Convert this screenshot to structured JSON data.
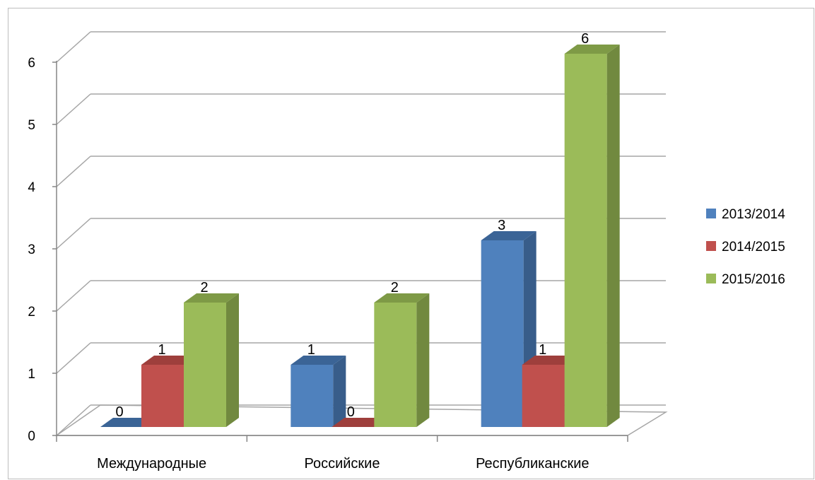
{
  "chart_data": {
    "type": "bar",
    "categories": [
      "Международные",
      "Российские",
      "Республиканские"
    ],
    "series": [
      {
        "name": "2013/2014",
        "values": [
          0,
          1,
          3
        ],
        "color": "#4F81BD",
        "side_color": "#385D8A",
        "top_color": "#3B6496"
      },
      {
        "name": "2014/2015",
        "values": [
          1,
          0,
          1
        ],
        "color": "#C0504D",
        "side_color": "#8C3836",
        "top_color": "#9E3F3C"
      },
      {
        "name": "2015/2016",
        "values": [
          2,
          2,
          6
        ],
        "color": "#9BBB59",
        "side_color": "#71893F",
        "top_color": "#7E9A46"
      }
    ],
    "y_ticks": [
      "0",
      "1",
      "2",
      "3",
      "4",
      "5",
      "6"
    ],
    "ylim": [
      0,
      6
    ],
    "grid": true,
    "legend_position": "right",
    "data_labels": true,
    "three_d": true
  }
}
